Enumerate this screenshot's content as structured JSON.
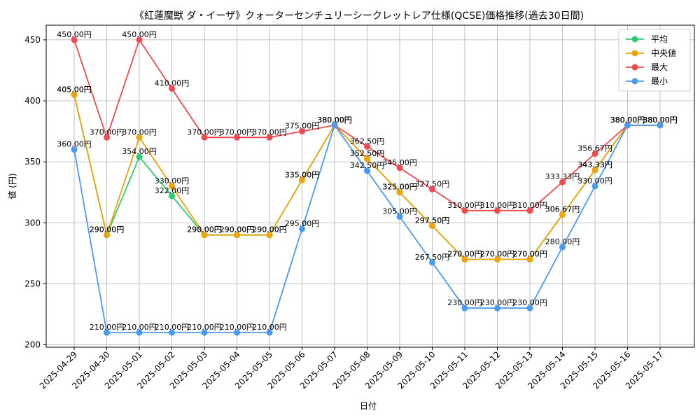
{
  "chart_data": {
    "type": "line",
    "title": "《紅蓮魔獣 ダ・イーザ》クォーターセンチュリーシークレットレア仕様(QCSE)価格推移(過去30日間)",
    "xlabel": "日付",
    "ylabel": "値 (円)",
    "ylim": [
      198,
      462
    ],
    "yticks": [
      200,
      250,
      300,
      350,
      400,
      450
    ],
    "grid": true,
    "legend_position": "top-right",
    "value_suffix": "円",
    "categories": [
      "2025-04-29",
      "2025-04-30",
      "2025-05-01",
      "2025-05-02",
      "2025-05-03",
      "2025-05-04",
      "2025-05-05",
      "2025-05-06",
      "2025-05-07",
      "2025-05-08",
      "2025-05-09",
      "2025-05-10",
      "2025-05-11",
      "2025-05-12",
      "2025-05-13",
      "2025-05-14",
      "2025-05-15",
      "2025-05-16",
      "2025-05-17"
    ],
    "series": [
      {
        "name": "平均",
        "color": "#2ecc71",
        "values": [
          405.0,
          290.0,
          354.0,
          322.0,
          290.0,
          290.0,
          290.0,
          335.0,
          380.0,
          352.5,
          325.0,
          297.5,
          270.0,
          270.0,
          270.0,
          306.67,
          343.33,
          380.0,
          380.0
        ]
      },
      {
        "name": "中央値",
        "color": "#f0a30a",
        "values": [
          405.0,
          290.0,
          370.0,
          330.0,
          290.0,
          290.0,
          290.0,
          335.0,
          380.0,
          352.5,
          325.0,
          297.5,
          270.0,
          270.0,
          270.0,
          306.67,
          343.33,
          380.0,
          380.0
        ]
      },
      {
        "name": "最大",
        "color": "#ef4b4f",
        "values": [
          450.0,
          370.0,
          450.0,
          410.0,
          370.0,
          370.0,
          370.0,
          375.0,
          380.0,
          362.5,
          345.0,
          327.5,
          310.0,
          310.0,
          310.0,
          333.33,
          356.67,
          380.0,
          380.0
        ]
      },
      {
        "name": "最小",
        "color": "#4a9af0",
        "values": [
          360.0,
          210.0,
          210.0,
          210.0,
          210.0,
          210.0,
          210.0,
          295.0,
          380.0,
          342.5,
          305.0,
          267.5,
          230.0,
          230.0,
          230.0,
          280.0,
          330.0,
          380.0,
          380.0
        ]
      }
    ]
  }
}
